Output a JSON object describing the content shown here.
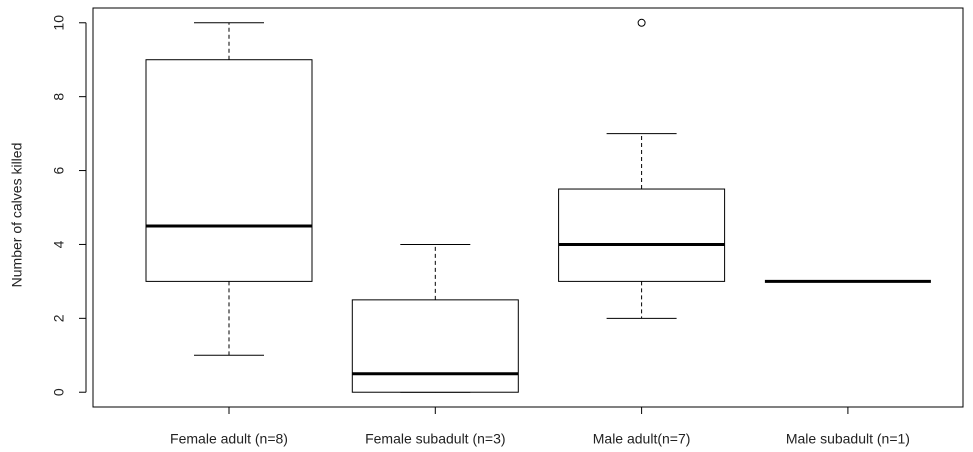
{
  "chart_data": {
    "type": "box",
    "y_label": "Number of calves killed",
    "categories": [
      "Female adult (n=8)",
      "Female subadult (n=3)",
      "Male adult(n=7)",
      "Male subadult (n=1)"
    ],
    "whisker_low": [
      1,
      0,
      2,
      3
    ],
    "q1": [
      3,
      0,
      3,
      3
    ],
    "median": [
      4.5,
      0.5,
      4,
      3
    ],
    "q3": [
      9,
      2.5,
      5.5,
      3
    ],
    "whisker_high": [
      10,
      4,
      7,
      3
    ],
    "outliers": [
      [],
      [],
      [
        10
      ],
      []
    ],
    "ylim": [
      -0.4,
      10.4
    ],
    "yticks": [
      0,
      2,
      4,
      6,
      8,
      10
    ],
    "color": "#000000"
  }
}
